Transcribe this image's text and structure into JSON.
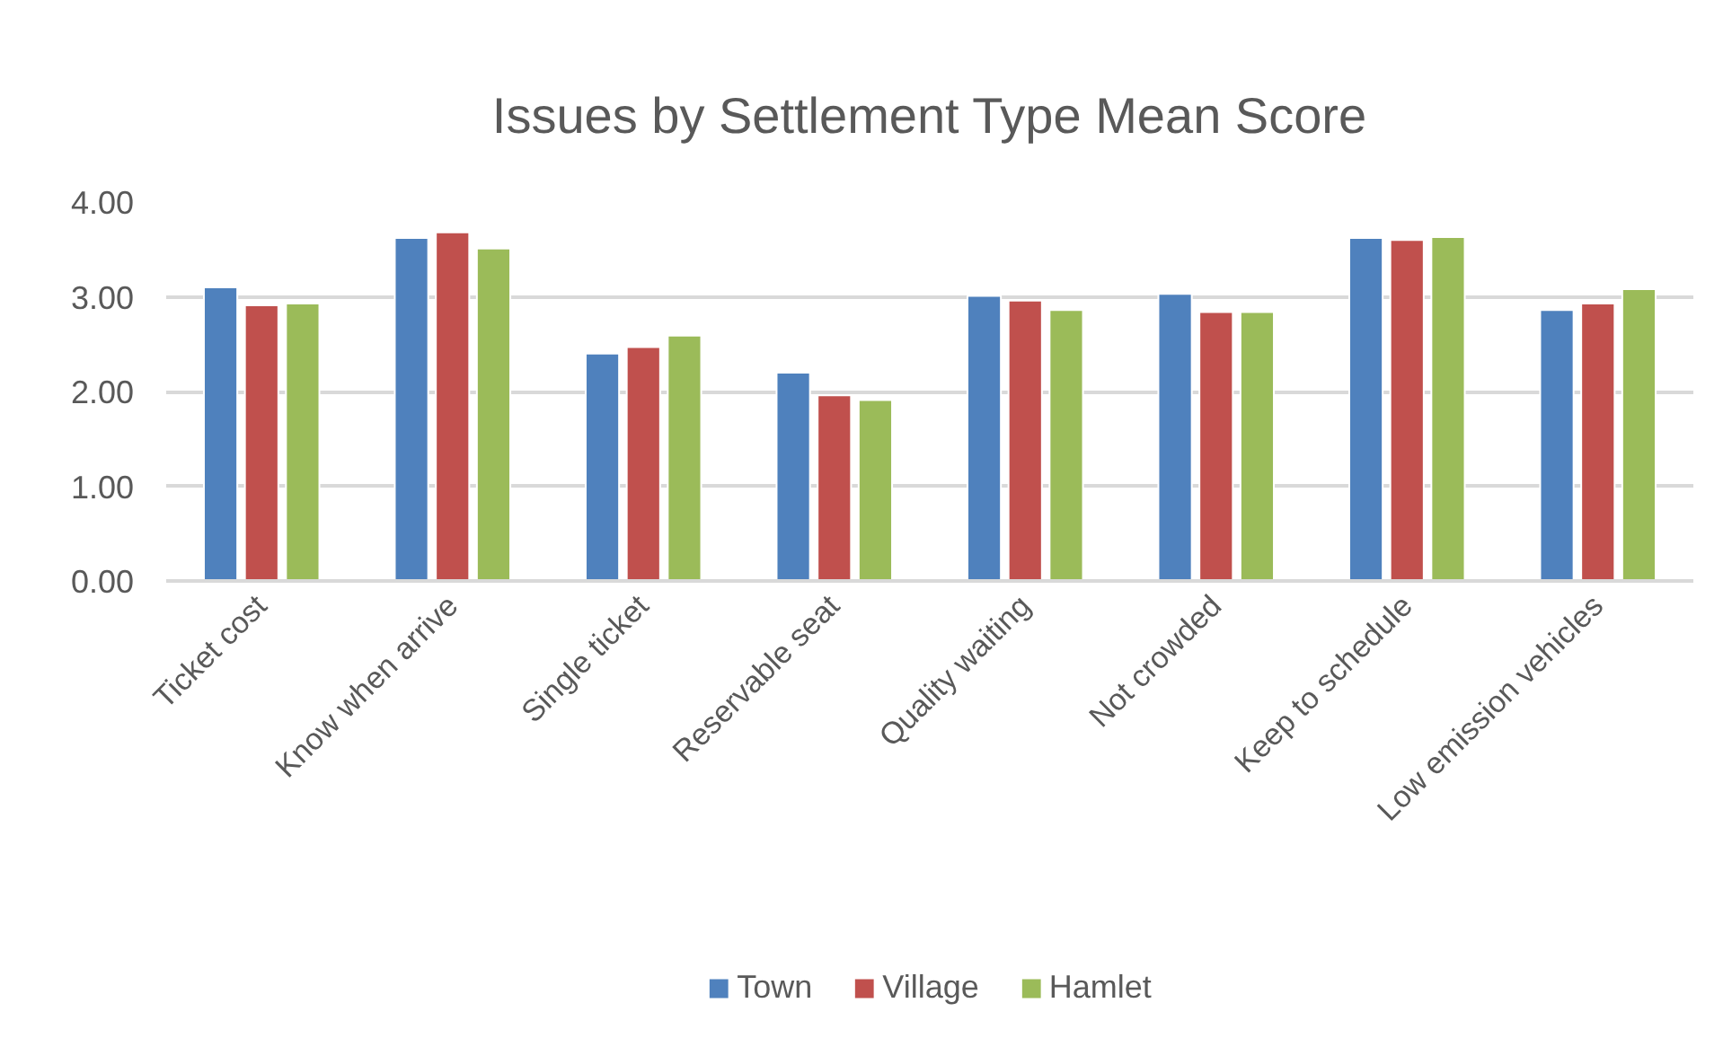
{
  "chart_data": {
    "type": "bar",
    "title": "Issues by Settlement Type Mean Score",
    "categories": [
      "Ticket cost",
      "Know when arrive",
      "Single ticket",
      "Reservable seat",
      "Quality waiting",
      "Not crowded",
      "Keep to schedule",
      "Low emission vehicles"
    ],
    "series": [
      {
        "name": "Town",
        "color": "#4f81bd",
        "values": [
          3.1,
          3.62,
          2.4,
          2.2,
          3.01,
          3.03,
          3.62,
          2.86
        ]
      },
      {
        "name": "Village",
        "color": "#c0504d",
        "values": [
          2.91,
          3.68,
          2.47,
          1.96,
          2.96,
          2.84,
          3.6,
          2.93
        ]
      },
      {
        "name": "Hamlet",
        "color": "#9bbb59",
        "values": [
          2.93,
          3.51,
          2.59,
          1.91,
          2.86,
          2.84,
          3.63,
          3.08
        ]
      }
    ],
    "ylim": [
      0,
      4
    ],
    "yticks": [
      {
        "value": 0,
        "label": "0.00"
      },
      {
        "value": 1,
        "label": "1.00"
      },
      {
        "value": 2,
        "label": "2.00"
      },
      {
        "value": 3,
        "label": "3.00"
      },
      {
        "value": 4,
        "label": "4.00"
      }
    ],
    "grid": "y",
    "legend": "bottom"
  }
}
